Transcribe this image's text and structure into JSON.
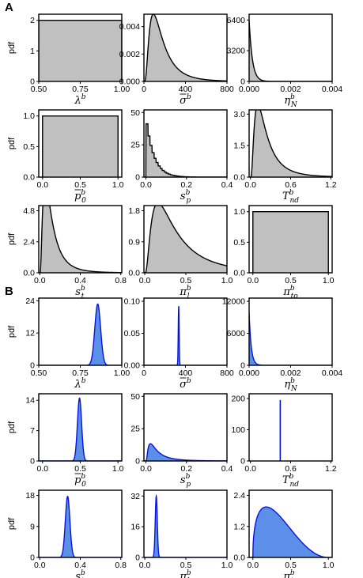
{
  "panels": [
    {
      "letter": "A"
    },
    {
      "letter": "B"
    }
  ],
  "colors": {
    "A_fill": "#c0c0c0",
    "A_line": "#000000",
    "B_fill": "#5b8fe8",
    "B_line": "#0a14d8"
  },
  "chart_data": [
    {
      "panel": "A",
      "type": "area",
      "ylabel": "pdf",
      "xvar": "λ",
      "xsup": "b",
      "xbar": false,
      "xsub": "",
      "xlim": [
        0.5,
        1.0
      ],
      "xticks": [
        0.5,
        0.75,
        1.0
      ],
      "xticklabels": [
        "0.50",
        "0.75",
        "1.00"
      ],
      "ylim": [
        0,
        2.2
      ],
      "yticks": [
        0,
        1,
        2
      ],
      "yticklabels": [
        "0",
        "1",
        "2"
      ],
      "dist": {
        "kind": "uniform",
        "a": 0.5,
        "b": 1.0,
        "h": 2
      }
    },
    {
      "panel": "A",
      "type": "area",
      "ylabel": "",
      "xvar": "σ",
      "xsup": "b",
      "xbar": true,
      "xsub": "",
      "xlim": [
        0,
        800
      ],
      "xticks": [
        0,
        400,
        800
      ],
      "xticklabels": [
        "0",
        "400",
        "800"
      ],
      "ylim": [
        0,
        0.0049
      ],
      "yticks": [
        0,
        0.002,
        0.004
      ],
      "yticklabels": [
        "0.000",
        "0.002",
        "0.004"
      ],
      "dist": {
        "kind": "lognormal",
        "mu": 5.0,
        "s": 0.7,
        "scale": 1
      }
    },
    {
      "panel": "A",
      "type": "area",
      "ylabel": "",
      "xvar": "η",
      "xsup": "b",
      "xbar": false,
      "xsub": "N",
      "xlim": [
        0,
        0.004
      ],
      "xticks": [
        0,
        0.002,
        0.004
      ],
      "xticklabels": [
        "0.000",
        "0.002",
        "0.004"
      ],
      "ylim": [
        0,
        7000
      ],
      "yticks": [
        0,
        3200,
        6400
      ],
      "yticklabels": [
        "0",
        "3200",
        "6400"
      ],
      "dist": {
        "kind": "exponential",
        "rate": 6400
      }
    },
    {
      "panel": "A",
      "type": "area",
      "ylabel": "pdf",
      "xvar": "p",
      "xsup": "b",
      "xbar": true,
      "xsub": "0",
      "xlim": [
        -0.05,
        1.05
      ],
      "xticks": [
        0,
        0.5,
        1.0
      ],
      "xticklabels": [
        "0.0",
        "0.5",
        "1.0"
      ],
      "ylim": [
        0,
        1.1
      ],
      "yticks": [
        0,
        0.5,
        1.0
      ],
      "yticklabels": [
        "0.0",
        "0.5",
        "1.0"
      ],
      "dist": {
        "kind": "uniform",
        "a": 0.0,
        "b": 1.0,
        "h": 1
      }
    },
    {
      "panel": "A",
      "type": "area",
      "ylabel": "",
      "xvar": "s",
      "xsup": "b",
      "xbar": false,
      "xsub": "p",
      "xlim": [
        -0.01,
        0.4
      ],
      "xticks": [
        0,
        0.2,
        0.4
      ],
      "xticklabels": [
        "0.0",
        "0.2",
        "0.4"
      ],
      "ylim": [
        0,
        52
      ],
      "yticks": [
        0,
        25,
        50
      ],
      "yticklabels": [
        "0",
        "25",
        "50"
      ],
      "dist": {
        "kind": "histdecay",
        "peak": 47,
        "rate": 26
      }
    },
    {
      "panel": "A",
      "type": "area",
      "ylabel": "",
      "xvar": "T",
      "xsup": "b",
      "xbar": false,
      "xsub": "nd",
      "xlim": [
        -0.02,
        1.22
      ],
      "xticks": [
        0,
        0.6,
        1.2
      ],
      "xticklabels": [
        "0.0",
        "0.6",
        "1.2"
      ],
      "ylim": [
        0,
        3.2
      ],
      "yticks": [
        0,
        1.5,
        3.0
      ],
      "yticklabels": [
        "0.0",
        "1.5",
        "3.0"
      ],
      "dist": {
        "kind": "lognormal",
        "mu": -1.6,
        "s": 0.78,
        "scale": 1
      }
    },
    {
      "panel": "A",
      "type": "area",
      "ylabel": "pdf",
      "xvar": "s",
      "xsup": "b",
      "xbar": false,
      "xsub": "t",
      "xlim": [
        -0.01,
        0.81
      ],
      "xticks": [
        0,
        0.4,
        0.8
      ],
      "xticklabels": [
        "0.0",
        "0.4",
        "0.8"
      ],
      "ylim": [
        0,
        5.2
      ],
      "yticks": [
        0,
        2.4,
        4.8
      ],
      "yticklabels": [
        "0.0",
        "2.4",
        "4.8"
      ],
      "dist": {
        "kind": "lognormal",
        "mu": -2.3,
        "s": 0.78,
        "scale": 1
      }
    },
    {
      "panel": "A",
      "type": "area",
      "ylabel": "",
      "xvar": "π",
      "xsup": "b",
      "xbar": false,
      "xsub": "l",
      "xlim": [
        -0.01,
        1.0
      ],
      "xticks": [
        0,
        0.5,
        1.0
      ],
      "xticklabels": [
        "0.0",
        "0.5",
        "1.0"
      ],
      "ylim": [
        0,
        1.95
      ],
      "yticks": [
        0,
        0.9,
        1.8
      ],
      "yticklabels": [
        "0.0",
        "0.9",
        "1.8"
      ],
      "dist": {
        "kind": "lognormal",
        "mu": -1.1,
        "s": 0.85,
        "scale": 1
      }
    },
    {
      "panel": "A",
      "type": "area",
      "ylabel": "",
      "xvar": "π",
      "xsup": "b",
      "xbar": false,
      "xsub": "to",
      "xlim": [
        -0.05,
        1.05
      ],
      "xticks": [
        0,
        0.5,
        1.0
      ],
      "xticklabels": [
        "0.0",
        "0.5",
        "1.0"
      ],
      "ylim": [
        0,
        1.1
      ],
      "yticks": [
        0,
        0.5,
        1.0
      ],
      "yticklabels": [
        "0.0",
        "0.5",
        "1.0"
      ],
      "dist": {
        "kind": "uniform",
        "a": 0.0,
        "b": 1.0,
        "h": 1
      }
    },
    {
      "panel": "B",
      "type": "area",
      "ylabel": "pdf",
      "xvar": "λ",
      "xsup": "b",
      "xbar": false,
      "xsub": "",
      "xlim": [
        0.5,
        1.0
      ],
      "xticks": [
        0.5,
        0.75,
        1.0
      ],
      "xticklabels": [
        "0.50",
        "0.75",
        "1.00"
      ],
      "ylim": [
        0,
        25
      ],
      "yticks": [
        0,
        12,
        24
      ],
      "yticklabels": [
        "0",
        "12",
        "24"
      ],
      "dist": {
        "kind": "normal",
        "mu": 0.855,
        "sd": 0.0175
      }
    },
    {
      "panel": "B",
      "type": "area",
      "ylabel": "",
      "xvar": "σ",
      "xsup": "b",
      "xbar": true,
      "xsub": "",
      "xlim": [
        0,
        800
      ],
      "xticks": [
        0,
        400,
        800
      ],
      "xticklabels": [
        "0",
        "400",
        "800"
      ],
      "ylim": [
        0,
        0.105
      ],
      "yticks": [
        0,
        0.05,
        0.1
      ],
      "yticklabels": [
        "0.00",
        "0.05",
        "0.10"
      ],
      "dist": {
        "kind": "normal",
        "mu": 335,
        "sd": 4.3
      }
    },
    {
      "panel": "B",
      "type": "area",
      "ylabel": "",
      "xvar": "η",
      "xsup": "b",
      "xbar": false,
      "xsub": "N",
      "xlim": [
        0,
        0.004
      ],
      "xticks": [
        0,
        0.002,
        0.004
      ],
      "xticklabels": [
        "0.000",
        "0.002",
        "0.004"
      ],
      "ylim": [
        0,
        12600
      ],
      "yticks": [
        0,
        6000,
        12000
      ],
      "yticklabels": [
        "0",
        "6000",
        "12000"
      ],
      "dist": {
        "kind": "exponential",
        "rate": 9800
      }
    },
    {
      "panel": "B",
      "type": "area",
      "ylabel": "pdf",
      "xvar": "p",
      "xsup": "b",
      "xbar": true,
      "xsub": "0",
      "xlim": [
        -0.05,
        1.05
      ],
      "xticks": [
        0,
        0.5,
        1.0
      ],
      "xticklabels": [
        "0.0",
        "0.5",
        "1.0"
      ],
      "ylim": [
        0,
        15.5
      ],
      "yticks": [
        0,
        7,
        14
      ],
      "yticklabels": [
        "0",
        "7",
        "14"
      ],
      "dist": {
        "kind": "normal",
        "mu": 0.49,
        "sd": 0.0275
      }
    },
    {
      "panel": "B",
      "type": "area",
      "ylabel": "",
      "xvar": "s",
      "xsup": "b",
      "xbar": false,
      "xsub": "p",
      "xlim": [
        -0.01,
        0.4
      ],
      "xticks": [
        0,
        0.2,
        0.4
      ],
      "xticklabels": [
        "0.0",
        "0.2",
        "0.4"
      ],
      "ylim": [
        0,
        52
      ],
      "yticks": [
        0,
        25,
        50
      ],
      "yticklabels": [
        "0",
        "25",
        "50"
      ],
      "dist": {
        "kind": "lognormal",
        "mu": -3.0,
        "s": 0.9,
        "scale": 1,
        "cap": 48
      }
    },
    {
      "panel": "B",
      "type": "area",
      "ylabel": "",
      "xvar": "T",
      "xsup": "b",
      "xbar": false,
      "xsub": "nd",
      "xlim": [
        -0.02,
        1.22
      ],
      "xticks": [
        0,
        0.6,
        1.2
      ],
      "xticklabels": [
        "0.0",
        "0.6",
        "1.2"
      ],
      "ylim": [
        0,
        215
      ],
      "yticks": [
        0,
        100,
        200
      ],
      "yticklabels": [
        "0",
        "100",
        "200"
      ],
      "dist": {
        "kind": "spike",
        "x": 0.445,
        "h": 195
      }
    },
    {
      "panel": "B",
      "type": "area",
      "ylabel": "pdf",
      "xvar": "s",
      "xsup": "b",
      "xbar": false,
      "xsub": "t",
      "xlim": [
        -0.01,
        0.81
      ],
      "xticks": [
        0,
        0.4,
        0.8
      ],
      "xticklabels": [
        "0.0",
        "0.4",
        "0.8"
      ],
      "ylim": [
        0,
        19.5
      ],
      "yticks": [
        0,
        9,
        18
      ],
      "yticklabels": [
        "0",
        "9",
        "18"
      ],
      "dist": {
        "kind": "normal",
        "mu": 0.275,
        "sd": 0.0225
      }
    },
    {
      "panel": "B",
      "type": "area",
      "ylabel": "",
      "xvar": "π",
      "xsup": "b",
      "xbar": false,
      "xsub": "l",
      "xlim": [
        -0.01,
        1.0
      ],
      "xticks": [
        0,
        0.5,
        1.0
      ],
      "xticklabels": [
        "0.0",
        "0.5",
        "1.0"
      ],
      "ylim": [
        0,
        35
      ],
      "yticks": [
        0,
        16,
        32
      ],
      "yticklabels": [
        "0",
        "16",
        "32"
      ],
      "dist": {
        "kind": "normal",
        "mu": 0.14,
        "sd": 0.0125
      }
    },
    {
      "panel": "B",
      "type": "area",
      "ylabel": "",
      "xvar": "π",
      "xsup": "b",
      "xbar": false,
      "xsub": "to",
      "xlim": [
        -0.05,
        1.05
      ],
      "xticks": [
        0,
        0.5,
        1.0
      ],
      "xticklabels": [
        "0.0",
        "0.5",
        "1.0"
      ],
      "ylim": [
        0,
        2.6
      ],
      "yticks": [
        0,
        1.2,
        2.4
      ],
      "yticklabels": [
        "0.0",
        "1.2",
        "2.4"
      ],
      "dist": {
        "kind": "beta",
        "a": 1.45,
        "b": 3.1
      }
    }
  ]
}
